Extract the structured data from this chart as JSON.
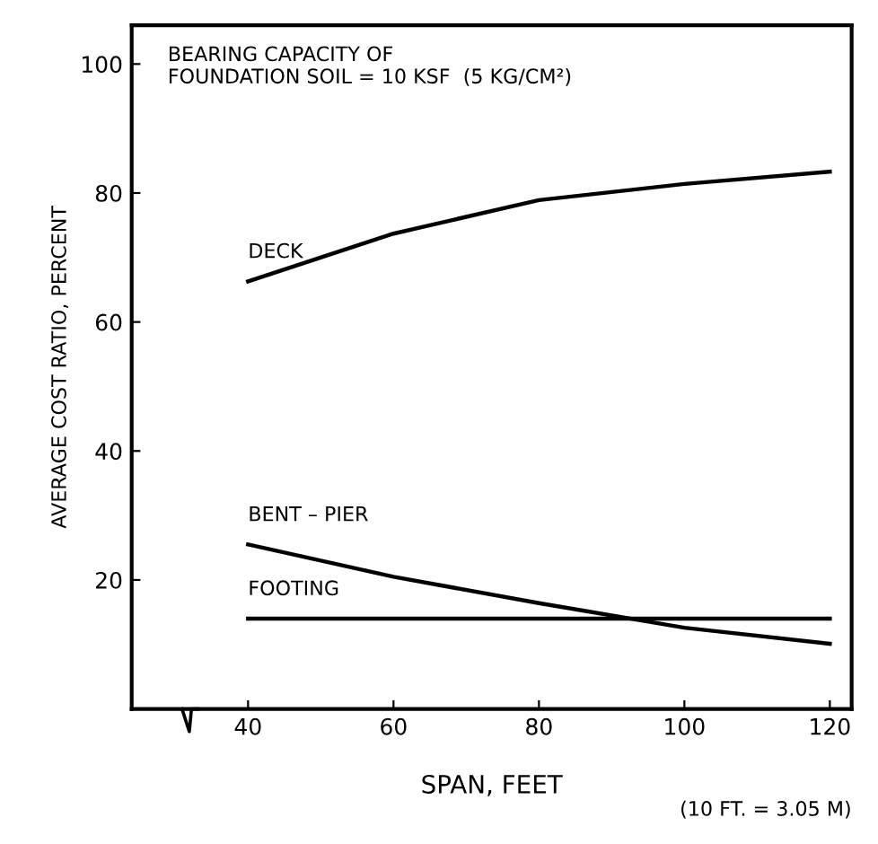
{
  "chart_data": {
    "type": "line",
    "xlabel": "SPAN, FEET",
    "ylabel": "AVERAGE COST RATIO, PERCENT",
    "x": [
      40,
      60,
      80,
      100,
      120
    ],
    "series": [
      {
        "name": "DECK",
        "color": "#000000",
        "values": [
          66.3,
          73.7,
          78.9,
          81.4,
          83.3
        ]
      },
      {
        "name": "BENT – PIER",
        "color": "#000000",
        "values": [
          25.5,
          20.5,
          16.4,
          12.6,
          10.1
        ]
      },
      {
        "name": "FOOTING",
        "color": "#000000",
        "values": [
          14.0,
          14.0,
          14.0,
          14.0,
          14.0
        ]
      }
    ],
    "xlim": [
      24,
      123
    ],
    "ylim": [
      0,
      106
    ],
    "xticks": [
      40,
      60,
      80,
      100,
      120
    ],
    "yticks": [
      20,
      40,
      60,
      80,
      100
    ],
    "grid": false,
    "legend": false,
    "marker": "none",
    "line_style": "solid",
    "annotations": [
      "BEARING CAPACITY OF\nFOUNDATION SOIL = 10 KSF  (5 KG/CM²)",
      "(10 FT. = 3.05 M)"
    ]
  }
}
